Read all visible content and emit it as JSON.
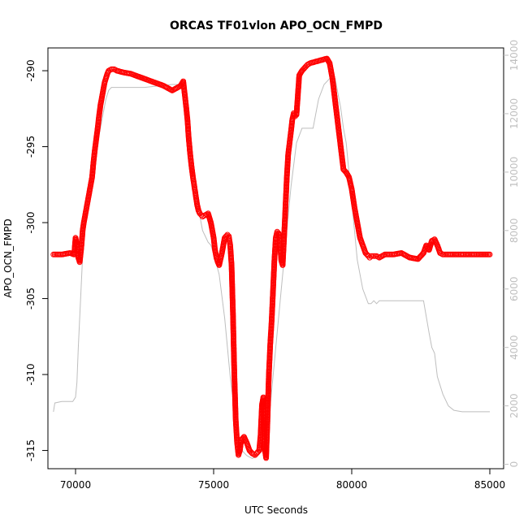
{
  "chart_data": {
    "type": "scatter",
    "title": "ORCAS TF01vlon APO_OCN_FMPD",
    "xlabel": "UTC Seconds",
    "ylabel": "APO_OCN_FMPD",
    "xlim": [
      69000,
      85500
    ],
    "ylim": [
      -316.2,
      -288.5
    ],
    "xticks": [
      70000,
      75000,
      80000,
      85000
    ],
    "yticks": [
      -290,
      -295,
      -300,
      -305,
      -310,
      -315
    ],
    "y2lim": [
      -150,
      14250
    ],
    "y2ticks": [
      0,
      2000,
      4000,
      6000,
      8000,
      10000,
      12000,
      14000
    ],
    "grid": false,
    "colors": {
      "points": "#ff0000",
      "secondary_line": "#bebebe",
      "axis": "#000000",
      "secondary_axis": "#bfbfbf"
    },
    "series": [
      {
        "axis": "left",
        "style": "open-circles-dashed-connector",
        "x": [
          69200,
          69500,
          69800,
          69950,
          70000,
          70050,
          70100,
          70150,
          70200,
          70260,
          70300,
          70400,
          70500,
          70550,
          70600,
          70650,
          70700,
          70750,
          70800,
          70850,
          70900,
          70950,
          71000,
          71050,
          71100,
          71150,
          71200,
          71300,
          71400,
          71500,
          71700,
          72000,
          72300,
          72600,
          72900,
          73200,
          73500,
          73800,
          73900,
          73950,
          74000,
          74050,
          74100,
          74150,
          74200,
          74250,
          74300,
          74350,
          74400,
          74450,
          74500,
          74550,
          74600,
          74700,
          74800,
          74900,
          74950,
          75000,
          75050,
          75100,
          75150,
          75200,
          75300,
          75400,
          75500,
          75550,
          75600,
          75650,
          75700,
          75750,
          75800,
          75850,
          75900,
          75950,
          76000,
          76100,
          76200,
          76300,
          76400,
          76500,
          76600,
          76650,
          76700,
          76750,
          76800,
          76850,
          76900,
          76950,
          77000,
          77050,
          77100,
          77150,
          77200,
          77250,
          77300,
          77350,
          77400,
          77450,
          77500,
          77550,
          77600,
          77650,
          77700,
          77800,
          77850,
          77900,
          77950,
          78000,
          78100,
          78200,
          78300,
          78400,
          78500,
          78700,
          78900,
          79100,
          79200,
          79300,
          79400,
          79500,
          79600,
          79700,
          79800,
          79900,
          79950,
          80000,
          80100,
          80200,
          80300,
          80400,
          80500,
          80600,
          80650,
          80700,
          80800,
          80900,
          81000,
          81200,
          81500,
          81800,
          82100,
          82400,
          82600,
          82700,
          82800,
          82900,
          83000,
          83100,
          83200,
          83300,
          83400,
          83700,
          84000,
          84300,
          84600,
          85000
        ],
        "y": [
          -302.1,
          -302.1,
          -302.0,
          -302.1,
          -301.0,
          -301.5,
          -302.3,
          -302.6,
          -301.8,
          -300.5,
          -300.0,
          -299.0,
          -298.0,
          -297.5,
          -297.0,
          -296.0,
          -295.2,
          -294.5,
          -293.8,
          -293.0,
          -292.3,
          -291.8,
          -291.3,
          -290.8,
          -290.5,
          -290.2,
          -290.0,
          -289.9,
          -289.9,
          -290.0,
          -290.1,
          -290.2,
          -290.4,
          -290.6,
          -290.8,
          -291.0,
          -291.3,
          -291.0,
          -290.7,
          -291.5,
          -292.3,
          -293.2,
          -294.5,
          -295.5,
          -296.3,
          -297.0,
          -297.6,
          -298.2,
          -298.8,
          -299.2,
          -299.4,
          -299.5,
          -299.6,
          -299.5,
          -299.4,
          -300.0,
          -300.5,
          -301.0,
          -301.8,
          -302.3,
          -302.6,
          -302.8,
          -302.0,
          -301.0,
          -300.8,
          -300.9,
          -301.5,
          -302.8,
          -306.0,
          -310.0,
          -313.0,
          -314.5,
          -315.3,
          -315.0,
          -314.3,
          -314.1,
          -314.5,
          -315.0,
          -315.2,
          -315.3,
          -315.1,
          -315.0,
          -314.0,
          -312.0,
          -311.5,
          -314.9,
          -315.5,
          -313.0,
          -310.0,
          -308.0,
          -306.5,
          -304.5,
          -302.5,
          -301.0,
          -300.6,
          -300.7,
          -301.2,
          -302.5,
          -302.8,
          -301.0,
          -299.0,
          -297.0,
          -295.5,
          -294.0,
          -293.2,
          -292.8,
          -293.0,
          -292.9,
          -290.3,
          -290.0,
          -289.8,
          -289.6,
          -289.5,
          -289.4,
          -289.3,
          -289.2,
          -289.5,
          -290.5,
          -292.0,
          -293.5,
          -295.0,
          -296.5,
          -296.7,
          -297.0,
          -297.4,
          -297.8,
          -299.0,
          -300.0,
          -301.0,
          -301.5,
          -302.0,
          -302.2,
          -302.3,
          -302.2,
          -302.2,
          -302.2,
          -302.3,
          -302.1,
          -302.1,
          -302.0,
          -302.3,
          -302.4,
          -302.0,
          -301.5,
          -301.8,
          -301.2,
          -301.1,
          -301.5,
          -302.0,
          -302.1,
          -302.1,
          -302.1,
          -302.1,
          -302.1,
          -302.1,
          -302.1
        ]
      },
      {
        "axis": "right",
        "style": "line",
        "x": [
          69200,
          69250,
          69500,
          69900,
          70000,
          70050,
          70100,
          70200,
          70300,
          70500,
          70700,
          70900,
          71000,
          71100,
          71200,
          71300,
          71400,
          71600,
          72000,
          72500,
          73000,
          73500,
          73800,
          73900,
          74000,
          74100,
          74200,
          74300,
          74400,
          74600,
          74800,
          74900,
          75000,
          75200,
          75400,
          75600,
          75800,
          76000,
          76200,
          76400,
          76600,
          76800,
          77000,
          77200,
          77400,
          77600,
          77800,
          78000,
          78200,
          78400,
          78600,
          78700,
          78800,
          79000,
          79200,
          79400,
          79500,
          79600,
          79700,
          79800,
          79900,
          80000,
          80100,
          80200,
          80400,
          80600,
          80700,
          80800,
          80900,
          81000,
          81500,
          82000,
          82600,
          82800,
          82900,
          83000,
          83100,
          83300,
          83500,
          83700,
          84000,
          84500,
          85000
        ],
        "y": [
          1800,
          2100,
          2150,
          2150,
          2300,
          2800,
          4000,
          6000,
          8000,
          9500,
          10500,
          11500,
          12000,
          12500,
          12800,
          12900,
          12900,
          12900,
          12900,
          12900,
          12950,
          13000,
          13000,
          13000,
          12800,
          12000,
          11000,
          10000,
          9000,
          8000,
          7600,
          7500,
          7200,
          6500,
          5000,
          3000,
          1500,
          500,
          300,
          200,
          300,
          500,
          1500,
          3500,
          5500,
          7500,
          9500,
          11000,
          11500,
          11500,
          11500,
          12000,
          12500,
          13000,
          13200,
          13200,
          12700,
          12200,
          11500,
          11000,
          10000,
          9000,
          8000,
          7000,
          6000,
          5500,
          5500,
          5600,
          5500,
          5600,
          5600,
          5600,
          5600,
          4500,
          4000,
          3800,
          3000,
          2400,
          2000,
          1850,
          1800,
          1800,
          1800
        ]
      }
    ]
  }
}
